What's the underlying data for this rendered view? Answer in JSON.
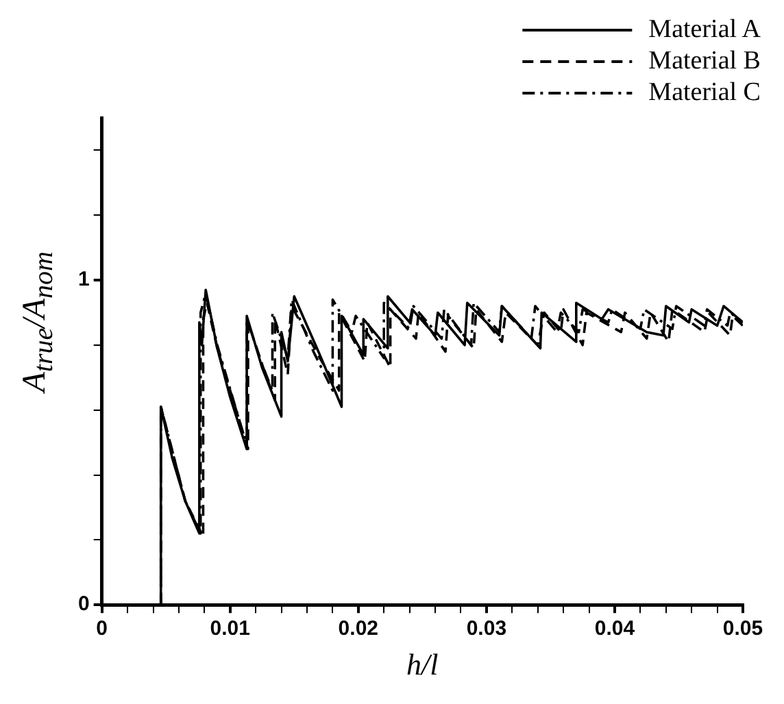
{
  "chart_data": {
    "type": "line",
    "xlabel": "h/l",
    "ylabel": "A$_{true}$/A$_{nom}$",
    "xlim": [
      0,
      0.05
    ],
    "ylim": [
      0,
      1.5
    ],
    "xticks": [
      0,
      {
        "value": 0.002,
        "label": null
      },
      {
        "value": 0.004,
        "label": null
      },
      {
        "value": 0.006,
        "label": null
      },
      {
        "value": 0.008,
        "label": null
      },
      0.01,
      {
        "value": 0.012,
        "label": null
      },
      {
        "value": 0.014,
        "label": null
      },
      {
        "value": 0.016,
        "label": null
      },
      {
        "value": 0.018,
        "label": null
      },
      0.02,
      {
        "value": 0.022,
        "label": null
      },
      {
        "value": 0.024,
        "label": null
      },
      {
        "value": 0.026,
        "label": null
      },
      {
        "value": 0.028,
        "label": null
      },
      0.03,
      {
        "value": 0.032,
        "label": null
      },
      {
        "value": 0.034,
        "label": null
      },
      {
        "value": 0.036,
        "label": null
      },
      {
        "value": 0.038,
        "label": null
      },
      0.04,
      {
        "value": 0.042,
        "label": null
      },
      {
        "value": 0.044,
        "label": null
      },
      {
        "value": 0.046,
        "label": null
      },
      {
        "value": 0.048,
        "label": null
      },
      0.05
    ],
    "yticks": [
      0,
      {
        "value": 0.2,
        "label": null
      },
      {
        "value": 0.4,
        "label": null
      },
      {
        "value": 0.6,
        "label": null
      },
      {
        "value": 0.8,
        "label": null
      },
      1,
      {
        "value": 1.2,
        "label": null
      },
      {
        "value": 1.4,
        "label": null
      }
    ],
    "grid": false,
    "legend": "top right",
    "marker": "none",
    "series": [
      {
        "name": "Material A",
        "color": "#000000",
        "line_style": "solid",
        "x": [
          0.0046,
          0.0046,
          0.0055,
          0.0065,
          0.0076,
          0.0076,
          0.0078,
          0.0081,
          0.009,
          0.01,
          0.0113,
          0.0113,
          0.0125,
          0.014,
          0.014,
          0.0145,
          0.015,
          0.017,
          0.0187,
          0.0187,
          0.0204,
          0.0204,
          0.0223,
          0.0223,
          0.024,
          0.0242,
          0.026,
          0.0262,
          0.0283,
          0.0285,
          0.031,
          0.0312,
          0.0342,
          0.0343,
          0.037,
          0.037,
          0.039,
          0.0395,
          0.0425,
          0.0438,
          0.044,
          0.0458,
          0.046,
          0.048,
          0.0485,
          0.05
        ],
        "values": [
          0,
          0.61,
          0.45,
          0.32,
          0.22,
          0.87,
          0.8,
          0.97,
          0.79,
          0.64,
          0.48,
          0.89,
          0.73,
          0.58,
          0.84,
          0.75,
          0.95,
          0.77,
          0.61,
          0.89,
          0.77,
          0.88,
          0.79,
          0.95,
          0.87,
          0.91,
          0.83,
          0.9,
          0.8,
          0.93,
          0.83,
          0.92,
          0.79,
          0.9,
          0.81,
          0.93,
          0.88,
          0.91,
          0.84,
          0.83,
          0.92,
          0.87,
          0.91,
          0.86,
          0.92,
          0.87
        ]
      },
      {
        "name": "Material B",
        "color": "#000000",
        "line_style": "dashed",
        "x": [
          0.0046,
          0.0046,
          0.0065,
          0.0079,
          0.0079,
          0.0082,
          0.009,
          0.0114,
          0.0114,
          0.0125,
          0.0135,
          0.0135,
          0.0145,
          0.0148,
          0.017,
          0.0185,
          0.0185,
          0.0205,
          0.0207,
          0.0225,
          0.0225,
          0.0245,
          0.0247,
          0.0268,
          0.027,
          0.029,
          0.0292,
          0.0312,
          0.0315,
          0.034,
          0.0345,
          0.0358,
          0.036,
          0.0375,
          0.0378,
          0.0405,
          0.0408,
          0.0425,
          0.0428,
          0.0442,
          0.0445,
          0.047,
          0.0473,
          0.049,
          0.0492,
          0.05
        ],
        "values": [
          0,
          0.61,
          0.32,
          0.21,
          0.88,
          0.93,
          0.79,
          0.48,
          0.87,
          0.74,
          0.63,
          0.88,
          0.71,
          0.92,
          0.76,
          0.66,
          0.9,
          0.75,
          0.87,
          0.73,
          0.91,
          0.82,
          0.9,
          0.78,
          0.89,
          0.79,
          0.91,
          0.81,
          0.9,
          0.8,
          0.9,
          0.84,
          0.91,
          0.8,
          0.9,
          0.84,
          0.9,
          0.82,
          0.9,
          0.81,
          0.91,
          0.84,
          0.9,
          0.83,
          0.89,
          0.86
        ]
      },
      {
        "name": "Material C",
        "color": "#000000",
        "line_style": "dashdot",
        "x": [
          0.0046,
          0.0046,
          0.0065,
          0.0077,
          0.0077,
          0.0081,
          0.009,
          0.0113,
          0.0113,
          0.0125,
          0.0133,
          0.0133,
          0.0145,
          0.0148,
          0.0165,
          0.018,
          0.018,
          0.0195,
          0.0198,
          0.022,
          0.022,
          0.024,
          0.0243,
          0.0265,
          0.0267,
          0.0288,
          0.029,
          0.031,
          0.0312,
          0.0335,
          0.0338,
          0.0355,
          0.0358,
          0.0372,
          0.0375,
          0.0395,
          0.0398,
          0.042,
          0.0423,
          0.0445,
          0.0448,
          0.047,
          0.0472,
          0.0488,
          0.049,
          0.05
        ],
        "values": [
          0,
          0.61,
          0.32,
          0.22,
          0.9,
          0.96,
          0.8,
          0.49,
          0.88,
          0.74,
          0.66,
          0.9,
          0.76,
          0.94,
          0.78,
          0.66,
          0.94,
          0.84,
          0.89,
          0.76,
          0.93,
          0.85,
          0.92,
          0.82,
          0.91,
          0.8,
          0.93,
          0.84,
          0.92,
          0.82,
          0.92,
          0.84,
          0.9,
          0.84,
          0.91,
          0.87,
          0.91,
          0.85,
          0.91,
          0.85,
          0.92,
          0.86,
          0.91,
          0.86,
          0.9,
          0.87
        ]
      }
    ]
  }
}
